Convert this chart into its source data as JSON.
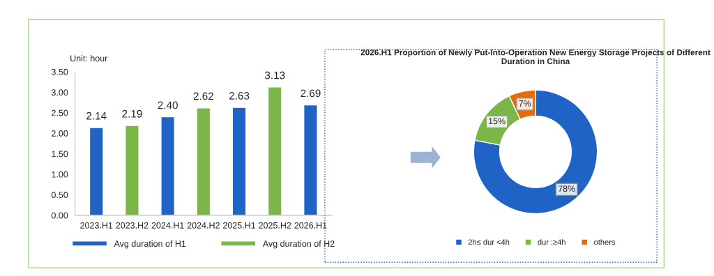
{
  "chart_data": [
    {
      "type": "bar",
      "ylabel": "Unit: hour",
      "categories": [
        "2023.H1",
        "2023.H2",
        "2024.H1",
        "2024.H2",
        "2025.H1",
        "2025.H2",
        "2026.H1"
      ],
      "series": [
        {
          "name": "Avg duration of H1",
          "color": "#1f63c6",
          "values": [
            2.14,
            null,
            2.4,
            null,
            2.63,
            null,
            2.69
          ]
        },
        {
          "name": "Avg duration of H2",
          "color": "#7ab648",
          "values": [
            null,
            2.19,
            null,
            2.62,
            null,
            3.13,
            null
          ]
        }
      ],
      "value_labels": [
        "2.14",
        "2.19",
        "2.40",
        "2.62",
        "2.63",
        "3.13",
        "2.69"
      ],
      "ylim": [
        0,
        3.5
      ],
      "yticks": [
        {
          "value": 0,
          "label": "0.00"
        },
        {
          "value": 0.5,
          "label": "0.50"
        },
        {
          "value": 1,
          "label": "1.00"
        },
        {
          "value": 1.5,
          "label": "1.50"
        },
        {
          "value": 2,
          "label": "2.00"
        },
        {
          "value": 2.5,
          "label": "2.50"
        },
        {
          "value": 3,
          "label": "3.00"
        },
        {
          "value": 3.5,
          "label": "3.50"
        }
      ],
      "grid": false,
      "legend": "bottom"
    },
    {
      "type": "donut",
      "title": "2026.H1 Proportion of Newly Put-Into-Operation New Energy Storage Projects of Different Duration in China",
      "categories": [
        "2h≤ dur <4h",
        "dur :≥4h",
        "others"
      ],
      "values": [
        78,
        15,
        7
      ],
      "colors": [
        "#1f63c6",
        "#7ab648",
        "#e46c0a"
      ],
      "value_labels": [
        "78%",
        "15%",
        "7%"
      ],
      "legend": "bottom"
    }
  ]
}
